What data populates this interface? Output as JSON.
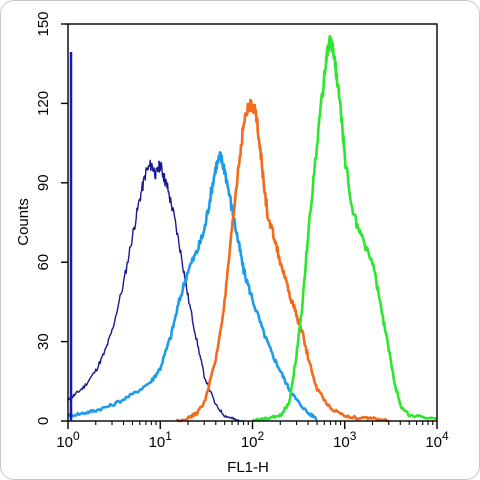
{
  "chart_data": {
    "type": "line",
    "title": "",
    "xlabel": "FL1-H",
    "ylabel": "Counts",
    "x_scale": "log",
    "xlim": [
      1,
      10000
    ],
    "ylim": [
      0,
      150
    ],
    "x_ticks": [
      {
        "value": 1,
        "base": "10",
        "exp": "0"
      },
      {
        "value": 10,
        "base": "10",
        "exp": "1"
      },
      {
        "value": 100,
        "base": "10",
        "exp": "2"
      },
      {
        "value": 1000,
        "base": "10",
        "exp": "3"
      },
      {
        "value": 10000,
        "base": "10",
        "exp": "4"
      }
    ],
    "y_ticks": [
      0,
      30,
      60,
      90,
      120,
      150
    ],
    "grid": false,
    "legend": "none",
    "series": [
      {
        "color": "#1a1a8c",
        "x": [
          1,
          1.2,
          1.5,
          2,
          2.5,
          3,
          4,
          5,
          6,
          7,
          8,
          9,
          10,
          11,
          12,
          14,
          17,
          20,
          25,
          30,
          40,
          50,
          60,
          70,
          80
        ],
        "y": [
          8,
          10,
          13,
          19,
          26,
          34,
          52,
          70,
          84,
          94,
          97,
          93,
          97,
          92,
          88,
          78,
          62,
          47,
          30,
          17,
          6,
          2,
          1,
          0,
          0
        ]
      },
      {
        "color": "#1e9be8",
        "x": [
          1,
          1.5,
          2,
          3,
          5,
          8,
          10,
          13,
          16,
          20,
          25,
          30,
          35,
          40,
          45,
          50,
          60,
          70,
          80,
          100,
          130,
          160,
          200,
          250,
          300,
          400,
          500
        ],
        "y": [
          2,
          3,
          4,
          6,
          10,
          15,
          20,
          32,
          45,
          57,
          64,
          72,
          85,
          96,
          100,
          95,
          80,
          68,
          57,
          46,
          34,
          26,
          19,
          12,
          8,
          3,
          1
        ]
      },
      {
        "color": "#f26a1b",
        "x": [
          15,
          20,
          25,
          30,
          40,
          50,
          60,
          70,
          80,
          90,
          100,
          110,
          120,
          130,
          150,
          170,
          200,
          250,
          300,
          350,
          400,
          500,
          700,
          1000,
          1500,
          2000,
          3000
        ],
        "y": [
          0,
          1,
          3,
          7,
          23,
          45,
          72,
          95,
          112,
          118,
          120,
          115,
          105,
          92,
          75,
          70,
          60,
          48,
          40,
          33,
          24,
          12,
          5,
          2,
          1,
          1,
          0
        ]
      },
      {
        "color": "#2ee62e",
        "x": [
          100,
          150,
          200,
          250,
          300,
          350,
          400,
          500,
          600,
          650,
          700,
          750,
          800,
          900,
          1000,
          1200,
          1500,
          2000,
          2500,
          3000,
          3500,
          4000,
          5000,
          10000
        ],
        "y": [
          0,
          1,
          2,
          7,
          25,
          45,
          70,
          105,
          130,
          140,
          144,
          140,
          133,
          118,
          100,
          80,
          70,
          60,
          42,
          27,
          14,
          6,
          2,
          1
        ]
      }
    ]
  }
}
